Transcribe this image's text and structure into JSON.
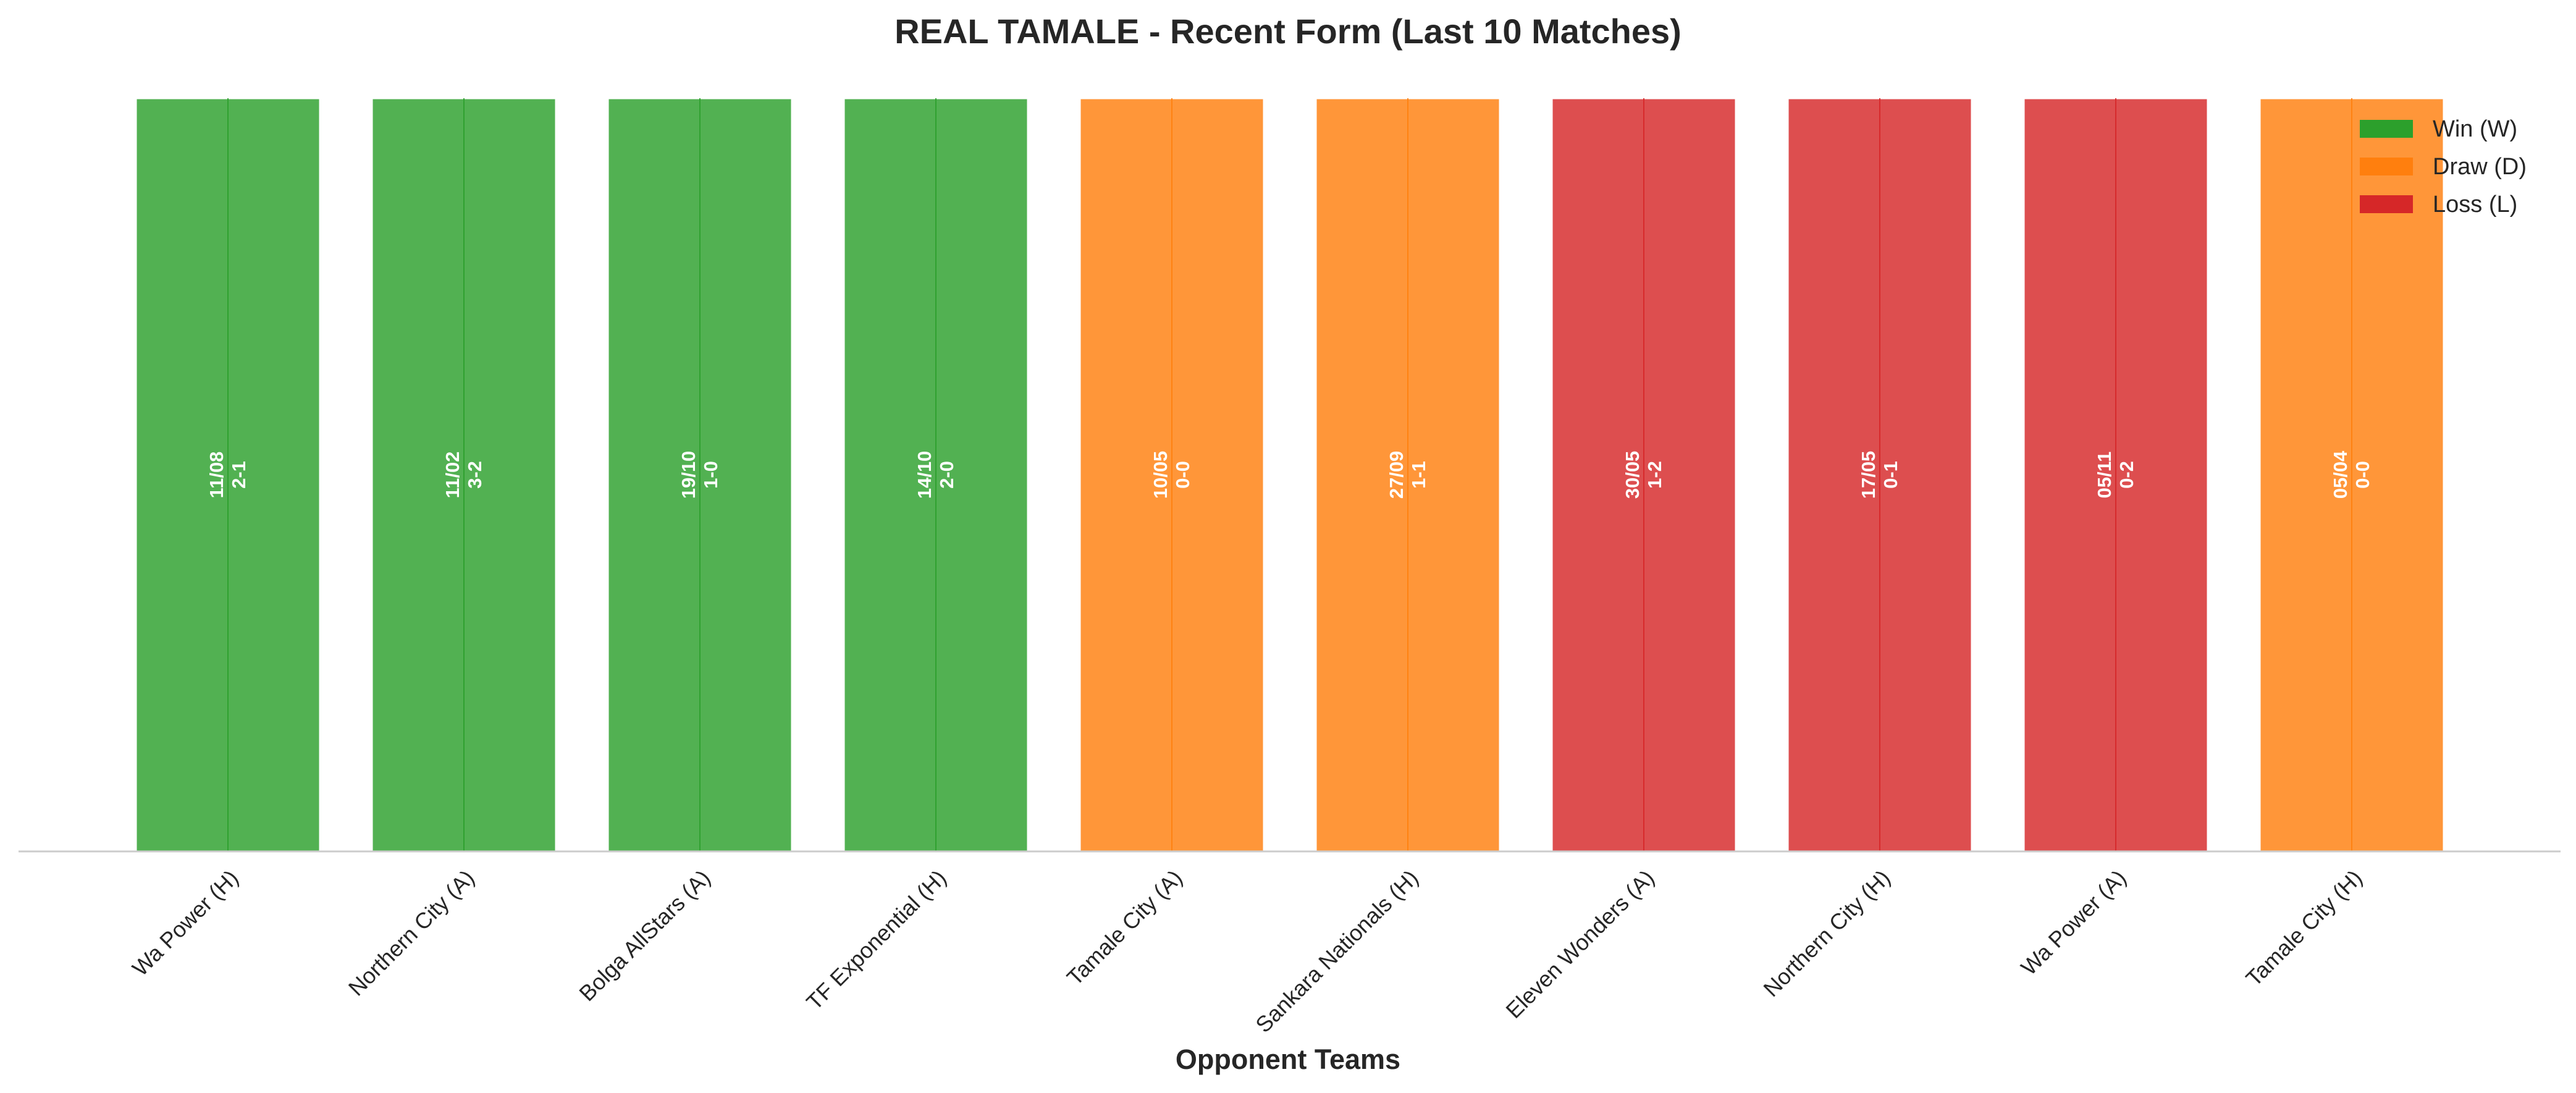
{
  "chart_data": {
    "type": "bar",
    "title": "REAL TAMALE - Recent Form (Last 10 Matches)",
    "xlabel": "Opponent Teams",
    "ylabel": "",
    "ylim": [
      0,
      1
    ],
    "grid": false,
    "legend_position": "top-right",
    "categories": [
      "Wa Power (H)",
      "Northern City (A)",
      "Bolga AllStars (A)",
      "TF Exponential (H)",
      "Tamale City (A)",
      "Sankara Nationals (H)",
      "Eleven Wonders (A)",
      "Northern City (H)",
      "Wa Power (A)",
      "Tamale City (H)"
    ],
    "values": [
      1,
      1,
      1,
      1,
      1,
      1,
      1,
      1,
      1,
      1
    ],
    "results": [
      "W",
      "W",
      "W",
      "W",
      "D",
      "D",
      "L",
      "L",
      "L",
      "D"
    ],
    "dates": [
      "11/08",
      "11/02",
      "19/10",
      "14/10",
      "10/05",
      "27/09",
      "30/05",
      "17/05",
      "05/11",
      "05/04"
    ],
    "scores": [
      "2-1",
      "3-2",
      "1-0",
      "2-0",
      "0-0",
      "1-1",
      "1-2",
      "0-1",
      "0-2",
      "0-0"
    ],
    "legend": [
      {
        "key": "W",
        "label": "Win (W)",
        "color": "#2ca02c"
      },
      {
        "key": "D",
        "label": "Draw (D)",
        "color": "#ff7f0e"
      },
      {
        "key": "L",
        "label": "Loss (L)",
        "color": "#d62728"
      }
    ]
  }
}
